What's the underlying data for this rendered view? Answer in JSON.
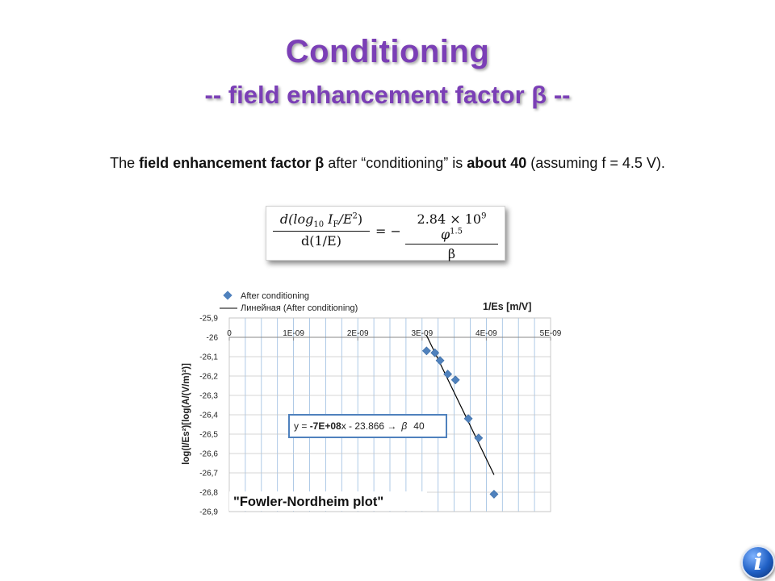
{
  "slide": {
    "title": "Conditioning",
    "subtitle": "-- field enhancement factor β --",
    "body": {
      "t1": "The ",
      "t2": "field enhancement factor β",
      "t3": " after “conditioning” is ",
      "t4": "about 40",
      "t5": " (assuming f = 4.5 V)."
    },
    "formula": {
      "lhs_num_a": "d(log",
      "lhs_num_b": "10",
      "lhs_num_c": " I",
      "lhs_num_d": "F",
      "lhs_num_e": "/E",
      "lhs_num_f": "2",
      "lhs_num_g": ")",
      "lhs_den": "d(1/E)",
      "eq": "= −",
      "rhs_num_a": "2.84 × 10",
      "rhs_num_b": "9",
      "rhs_num_c": " φ",
      "rhs_num_d": "1.5",
      "rhs_den": "β"
    },
    "logo_icon": "info-icon",
    "logo_letter": "i"
  },
  "chart_data": {
    "type": "scatter",
    "x_axis_title": "1/Es [m/V]",
    "y_axis_title": "log(I/Es²)[log(A/(V/m)²)]",
    "xlim": [
      0,
      5e-09
    ],
    "ylim": [
      -26.9,
      -25.9
    ],
    "x_ticks": [
      0,
      1e-09,
      2e-09,
      3e-09,
      4e-09,
      5e-09
    ],
    "x_tick_labels": [
      "0",
      "1E-09",
      "2E-09",
      "3E-09",
      "4E-09",
      "5E-09"
    ],
    "y_ticks": [
      -25.9,
      -26,
      -26.1,
      -26.2,
      -26.3,
      -26.4,
      -26.5,
      -26.6,
      -26.7,
      -26.8,
      -26.9
    ],
    "y_tick_labels": [
      "-25,9",
      "-26",
      "-26,1",
      "-26,2",
      "-26,3",
      "-26,4",
      "-26,5",
      "-26,6",
      "-26,7",
      "-26,8",
      "-26,9"
    ],
    "x_axis_position": "top",
    "grid": true,
    "legend_position": "top-left",
    "series": [
      {
        "name": "After conditioning",
        "marker": "diamond",
        "color": "#4f81bd",
        "x": [
          3.07e-09,
          3.2e-09,
          3.28e-09,
          3.4e-09,
          3.52e-09,
          3.72e-09,
          3.88e-09,
          4.12e-09
        ],
        "y": [
          -26.07,
          -26.08,
          -26.12,
          -26.19,
          -26.22,
          -26.42,
          -26.52,
          -26.81
        ]
      }
    ],
    "trendline": {
      "name": "Линейная (After conditioning)",
      "color": "#000000",
      "x": [
        3.07e-09,
        4.12e-09
      ],
      "y": [
        -25.99,
        -26.71
      ]
    },
    "equation": {
      "prefix": "y = ",
      "slope": "-7E+08",
      "suffix": "x - 23.866  ",
      "arrow": "→",
      "beta_symbol": "β",
      "beta_value": "40"
    },
    "annotation": "\"Fowler-Nordheim plot\""
  }
}
